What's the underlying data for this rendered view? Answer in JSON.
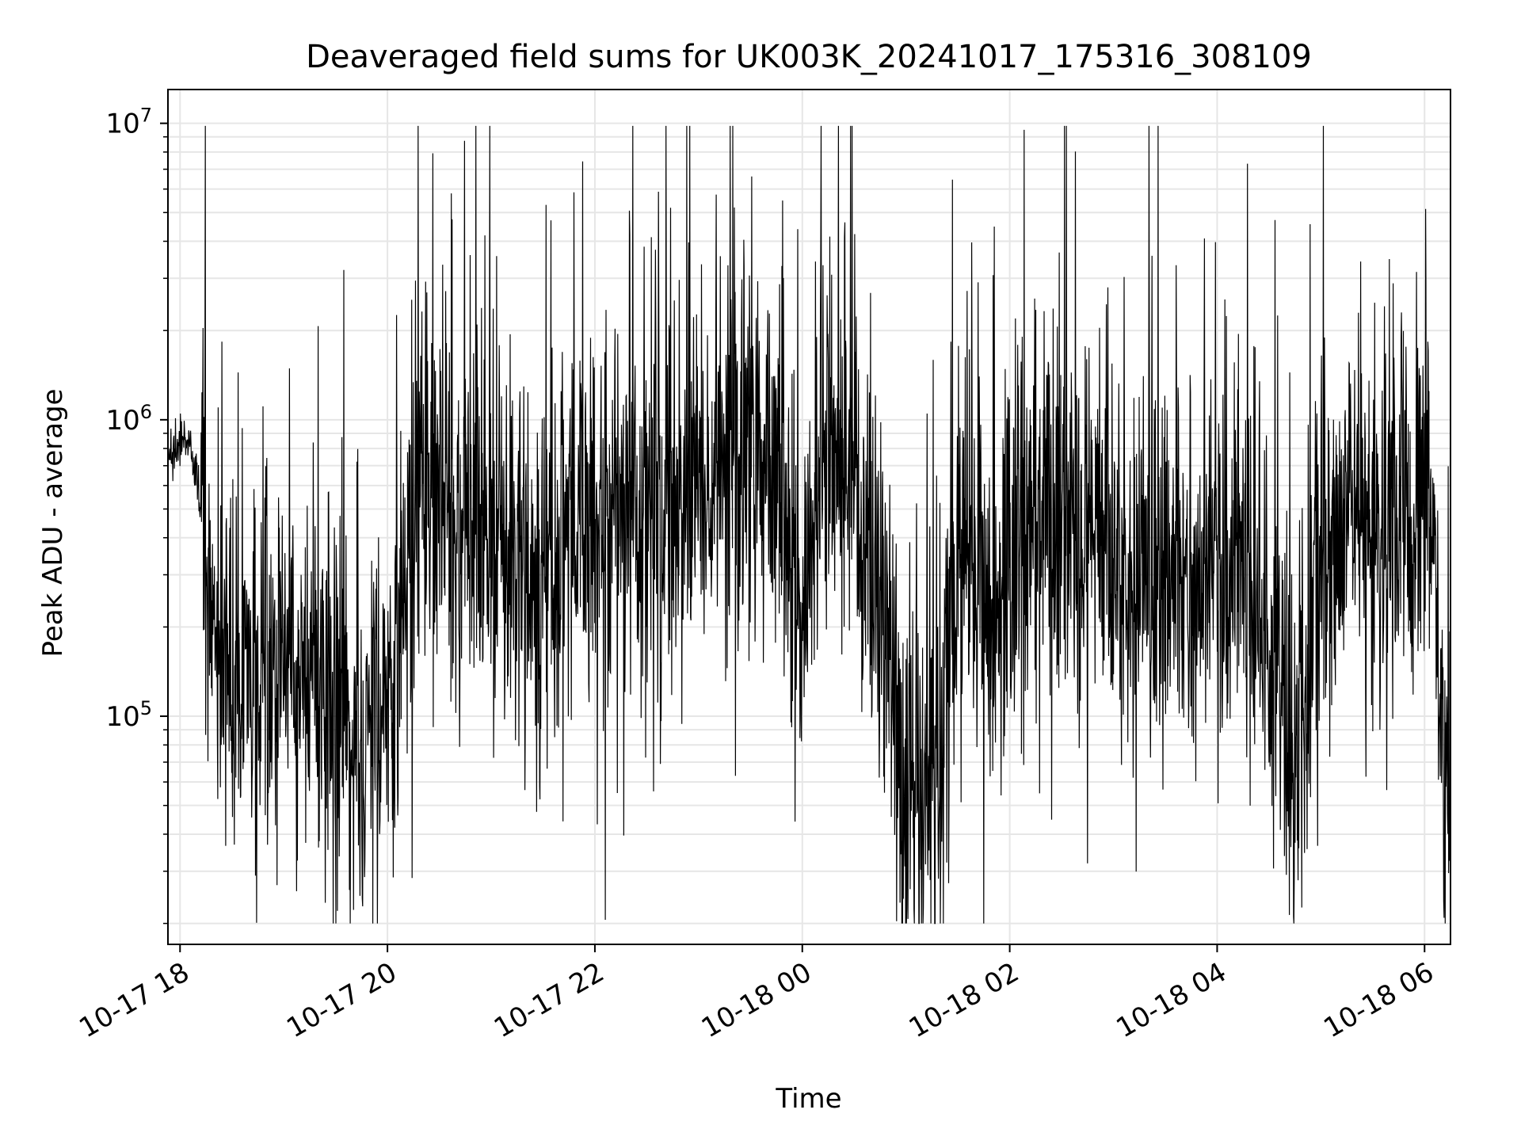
{
  "chart_data": {
    "type": "line",
    "title": "Deaveraged field sums for UK003K_20241017_175316_308109",
    "xlabel": "Time",
    "ylabel": "Peak ADU - average",
    "y_scale": "log",
    "ylim": [
      17000,
      13000000
    ],
    "xlim": [
      "2024-10-17 17:53",
      "2024-10-18 06:15"
    ],
    "x_ticks": [
      {
        "value": "2024-10-17 18:00",
        "label": "10-17 18"
      },
      {
        "value": "2024-10-17 20:00",
        "label": "10-17 20"
      },
      {
        "value": "2024-10-17 22:00",
        "label": "10-17 22"
      },
      {
        "value": "2024-10-18 00:00",
        "label": "10-18 00"
      },
      {
        "value": "2024-10-18 02:00",
        "label": "10-18 02"
      },
      {
        "value": "2024-10-18 04:00",
        "label": "10-18 04"
      },
      {
        "value": "2024-10-18 06:00",
        "label": "10-18 06"
      }
    ],
    "y_ticks": [
      {
        "value": 100000,
        "base": "10",
        "exp": "5"
      },
      {
        "value": 1000000,
        "base": "10",
        "exp": "6"
      },
      {
        "value": 10000000,
        "base": "10",
        "exp": "7"
      }
    ],
    "grid": true,
    "line_color": "#000000",
    "grid_color": "#e6e6e6",
    "series": [
      {
        "x": [
          "2024-10-17 17:53",
          "2024-10-17 18:05",
          "2024-10-17 18:10",
          "2024-10-17 18:15",
          "2024-10-17 18:20",
          "2024-10-17 18:25",
          "2024-10-17 18:30",
          "2024-10-17 18:40",
          "2024-10-17 18:50",
          "2024-10-17 19:00",
          "2024-10-17 19:10",
          "2024-10-17 19:20",
          "2024-10-17 19:30",
          "2024-10-17 19:40",
          "2024-10-17 19:50",
          "2024-10-17 20:00",
          "2024-10-17 20:10",
          "2024-10-17 20:20",
          "2024-10-17 20:30",
          "2024-10-17 20:45",
          "2024-10-17 21:00",
          "2024-10-17 21:15",
          "2024-10-17 21:30",
          "2024-10-17 21:45",
          "2024-10-17 22:00",
          "2024-10-17 22:15",
          "2024-10-17 22:30",
          "2024-10-17 22:45",
          "2024-10-17 23:00",
          "2024-10-17 23:15",
          "2024-10-17 23:30",
          "2024-10-17 23:45",
          "2024-10-17 23:55",
          "2024-10-18 00:00",
          "2024-10-18 00:10",
          "2024-10-18 00:20",
          "2024-10-18 00:30",
          "2024-10-18 00:40",
          "2024-10-18 00:50",
          "2024-10-18 01:00",
          "2024-10-18 01:10",
          "2024-10-18 01:20",
          "2024-10-18 01:30",
          "2024-10-18 01:40",
          "2024-10-18 01:50",
          "2024-10-18 02:00",
          "2024-10-18 02:20",
          "2024-10-18 02:40",
          "2024-10-18 03:00",
          "2024-10-18 03:20",
          "2024-10-18 03:40",
          "2024-10-18 04:00",
          "2024-10-18 04:20",
          "2024-10-18 04:35",
          "2024-10-18 04:45",
          "2024-10-18 05:00",
          "2024-10-18 05:15",
          "2024-10-18 05:30",
          "2024-10-18 05:45",
          "2024-10-18 05:55",
          "2024-10-18 06:00",
          "2024-10-18 06:05",
          "2024-10-18 06:10",
          "2024-10-18 06:15"
        ],
        "y": [
          800000,
          850000,
          600000,
          350000,
          220000,
          160000,
          150000,
          140000,
          150000,
          150000,
          140000,
          120000,
          110000,
          100000,
          90000,
          100000,
          300000,
          600000,
          500000,
          350000,
          400000,
          350000,
          300000,
          450000,
          400000,
          450000,
          400000,
          600000,
          700000,
          800000,
          750000,
          700000,
          400000,
          250000,
          450000,
          800000,
          600000,
          350000,
          150000,
          50000,
          45000,
          70000,
          450000,
          350000,
          200000,
          300000,
          500000,
          450000,
          350000,
          300000,
          300000,
          350000,
          300000,
          150000,
          60000,
          250000,
          450000,
          400000,
          450000,
          500000,
          800000,
          350000,
          60000,
          55000
        ]
      }
    ]
  }
}
